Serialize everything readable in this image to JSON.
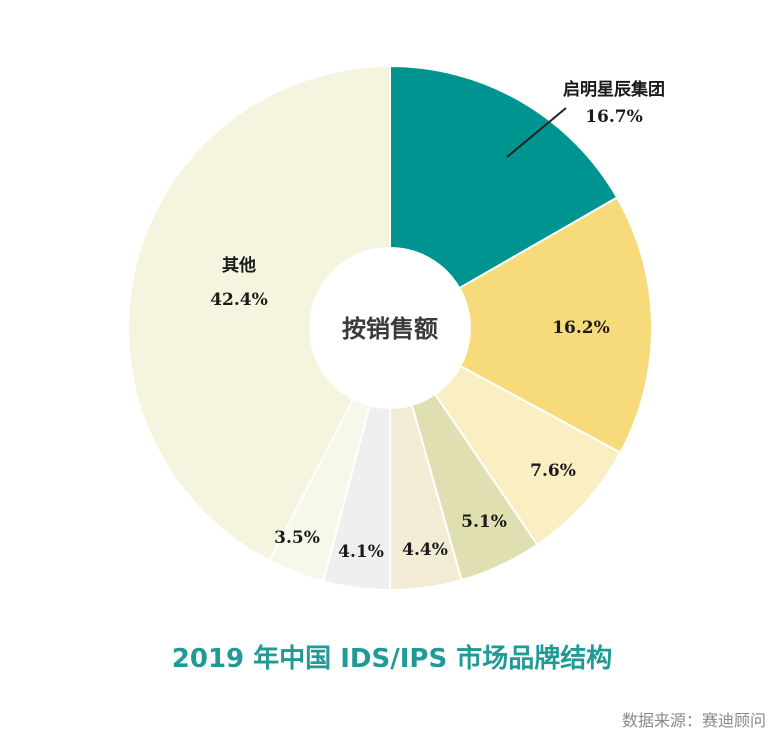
{
  "chart_data": {
    "type": "pie",
    "donut": true,
    "center_label": "按销售额",
    "title": "2019 年中国 IDS/IPS 市场品牌结构",
    "source": "数据来源：赛迪顾问",
    "slices": [
      {
        "name": "启明星辰集团",
        "value": 16.7,
        "value_label": "16.7%",
        "color": "#009490"
      },
      {
        "name": "",
        "value": 16.2,
        "value_label": "16.2%",
        "color": "#f7db7a"
      },
      {
        "name": "",
        "value": 7.6,
        "value_label": "7.6%",
        "color": "#faefc2"
      },
      {
        "name": "",
        "value": 5.1,
        "value_label": "5.1%",
        "color": "#e0dfb2"
      },
      {
        "name": "",
        "value": 4.4,
        "value_label": "4.4%",
        "color": "#f1ecd3"
      },
      {
        "name": "",
        "value": 4.1,
        "value_label": "4.1%",
        "color": "#efefef"
      },
      {
        "name": "",
        "value": 3.5,
        "value_label": "3.5%",
        "color": "#f7f7ea"
      },
      {
        "name": "其他",
        "value": 42.4,
        "value_label": "42.4%",
        "color": "#f4f4df"
      }
    ]
  }
}
